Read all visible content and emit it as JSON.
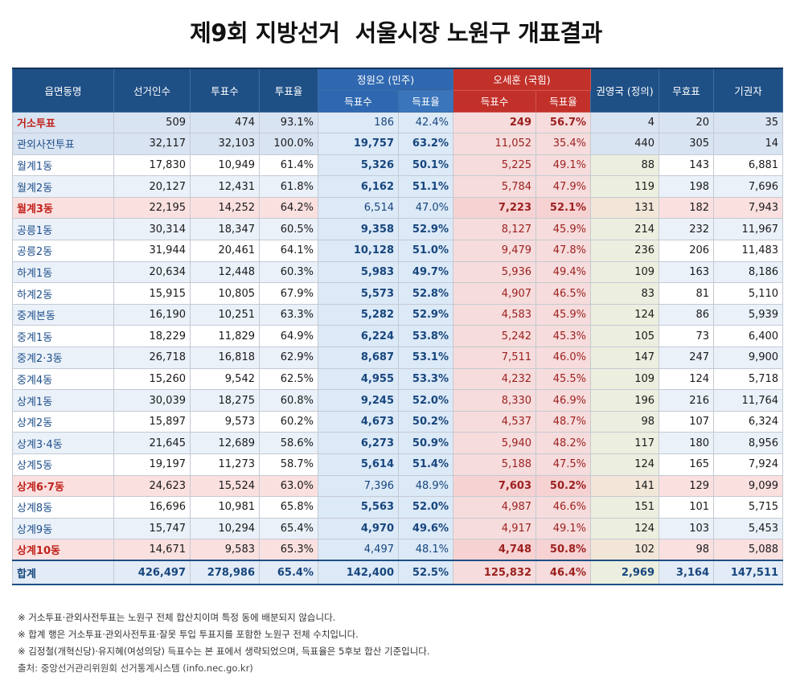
{
  "title": "제9회 지방선거  서울시장 노원구 개표결과",
  "header": {
    "col_area": "읍면동명",
    "col_electors": "선거인수",
    "col_voters": "투표수",
    "col_turnout": "투표율",
    "cand1": "정원오 (민주)",
    "cand2": "오세훈 (국힘)",
    "cand3": "권영국 (정의)",
    "col_invalid": "무효표",
    "col_abstain": "기권자",
    "sub_votes": "득표수",
    "sub_rate": "득표율"
  },
  "rows": [
    {
      "name": "거소투표",
      "electors": "509",
      "voters": "474",
      "turnout": "93.1%",
      "g_votes": "186",
      "g_rate": "42.4%",
      "o_votes": "249",
      "o_rate": "56.7%",
      "k_votes": "4",
      "invalid": "20",
      "abstain": "35",
      "winner": "o",
      "kind": "special"
    },
    {
      "name": "관외사전투표",
      "electors": "32,117",
      "voters": "32,103",
      "turnout": "100.0%",
      "g_votes": "19,757",
      "g_rate": "63.2%",
      "o_votes": "11,052",
      "o_rate": "35.4%",
      "k_votes": "440",
      "invalid": "305",
      "abstain": "14",
      "winner": "g",
      "kind": "special"
    },
    {
      "name": "월계1동",
      "electors": "17,830",
      "voters": "10,949",
      "turnout": "61.4%",
      "g_votes": "5,326",
      "g_rate": "50.1%",
      "o_votes": "5,225",
      "o_rate": "49.1%",
      "k_votes": "88",
      "invalid": "143",
      "abstain": "6,881",
      "winner": "g",
      "kind": "white"
    },
    {
      "name": "월계2동",
      "electors": "20,127",
      "voters": "12,431",
      "turnout": "61.8%",
      "g_votes": "6,162",
      "g_rate": "51.1%",
      "o_votes": "5,784",
      "o_rate": "47.9%",
      "k_votes": "119",
      "invalid": "198",
      "abstain": "7,696",
      "winner": "g",
      "kind": "alt"
    },
    {
      "name": "월계3동",
      "electors": "22,195",
      "voters": "14,252",
      "turnout": "64.2%",
      "g_votes": "6,514",
      "g_rate": "47.0%",
      "o_votes": "7,223",
      "o_rate": "52.1%",
      "k_votes": "131",
      "invalid": "182",
      "abstain": "7,943",
      "winner": "o",
      "kind": "oh"
    },
    {
      "name": "공릉1동",
      "electors": "30,314",
      "voters": "18,347",
      "turnout": "60.5%",
      "g_votes": "9,358",
      "g_rate": "52.9%",
      "o_votes": "8,127",
      "o_rate": "45.9%",
      "k_votes": "214",
      "invalid": "232",
      "abstain": "11,967",
      "winner": "g",
      "kind": "alt"
    },
    {
      "name": "공릉2동",
      "electors": "31,944",
      "voters": "20,461",
      "turnout": "64.1%",
      "g_votes": "10,128",
      "g_rate": "51.0%",
      "o_votes": "9,479",
      "o_rate": "47.8%",
      "k_votes": "236",
      "invalid": "206",
      "abstain": "11,483",
      "winner": "g",
      "kind": "white"
    },
    {
      "name": "하계1동",
      "electors": "20,634",
      "voters": "12,448",
      "turnout": "60.3%",
      "g_votes": "5,983",
      "g_rate": "49.7%",
      "o_votes": "5,936",
      "o_rate": "49.4%",
      "k_votes": "109",
      "invalid": "163",
      "abstain": "8,186",
      "winner": "g",
      "kind": "alt"
    },
    {
      "name": "하계2동",
      "electors": "15,915",
      "voters": "10,805",
      "turnout": "67.9%",
      "g_votes": "5,573",
      "g_rate": "52.8%",
      "o_votes": "4,907",
      "o_rate": "46.5%",
      "k_votes": "83",
      "invalid": "81",
      "abstain": "5,110",
      "winner": "g",
      "kind": "white"
    },
    {
      "name": "중계본동",
      "electors": "16,190",
      "voters": "10,251",
      "turnout": "63.3%",
      "g_votes": "5,282",
      "g_rate": "52.9%",
      "o_votes": "4,583",
      "o_rate": "45.9%",
      "k_votes": "124",
      "invalid": "86",
      "abstain": "5,939",
      "winner": "g",
      "kind": "alt"
    },
    {
      "name": "중계1동",
      "electors": "18,229",
      "voters": "11,829",
      "turnout": "64.9%",
      "g_votes": "6,224",
      "g_rate": "53.8%",
      "o_votes": "5,242",
      "o_rate": "45.3%",
      "k_votes": "105",
      "invalid": "73",
      "abstain": "6,400",
      "winner": "g",
      "kind": "white"
    },
    {
      "name": "중계2·3동",
      "electors": "26,718",
      "voters": "16,818",
      "turnout": "62.9%",
      "g_votes": "8,687",
      "g_rate": "53.1%",
      "o_votes": "7,511",
      "o_rate": "46.0%",
      "k_votes": "147",
      "invalid": "247",
      "abstain": "9,900",
      "winner": "g",
      "kind": "alt"
    },
    {
      "name": "중계4동",
      "electors": "15,260",
      "voters": "9,542",
      "turnout": "62.5%",
      "g_votes": "4,955",
      "g_rate": "53.3%",
      "o_votes": "4,232",
      "o_rate": "45.5%",
      "k_votes": "109",
      "invalid": "124",
      "abstain": "5,718",
      "winner": "g",
      "kind": "white"
    },
    {
      "name": "상계1동",
      "electors": "30,039",
      "voters": "18,275",
      "turnout": "60.8%",
      "g_votes": "9,245",
      "g_rate": "52.0%",
      "o_votes": "8,330",
      "o_rate": "46.9%",
      "k_votes": "196",
      "invalid": "216",
      "abstain": "11,764",
      "winner": "g",
      "kind": "alt"
    },
    {
      "name": "상계2동",
      "electors": "15,897",
      "voters": "9,573",
      "turnout": "60.2%",
      "g_votes": "4,673",
      "g_rate": "50.2%",
      "o_votes": "4,537",
      "o_rate": "48.7%",
      "k_votes": "98",
      "invalid": "107",
      "abstain": "6,324",
      "winner": "g",
      "kind": "white"
    },
    {
      "name": "상계3·4동",
      "electors": "21,645",
      "voters": "12,689",
      "turnout": "58.6%",
      "g_votes": "6,273",
      "g_rate": "50.9%",
      "o_votes": "5,940",
      "o_rate": "48.2%",
      "k_votes": "117",
      "invalid": "180",
      "abstain": "8,956",
      "winner": "g",
      "kind": "alt"
    },
    {
      "name": "상계5동",
      "electors": "19,197",
      "voters": "11,273",
      "turnout": "58.7%",
      "g_votes": "5,614",
      "g_rate": "51.4%",
      "o_votes": "5,188",
      "o_rate": "47.5%",
      "k_votes": "124",
      "invalid": "165",
      "abstain": "7,924",
      "winner": "g",
      "kind": "white"
    },
    {
      "name": "상계6·7동",
      "electors": "24,623",
      "voters": "15,524",
      "turnout": "63.0%",
      "g_votes": "7,396",
      "g_rate": "48.9%",
      "o_votes": "7,603",
      "o_rate": "50.2%",
      "k_votes": "141",
      "invalid": "129",
      "abstain": "9,099",
      "winner": "o",
      "kind": "oh"
    },
    {
      "name": "상계8동",
      "electors": "16,696",
      "voters": "10,981",
      "turnout": "65.8%",
      "g_votes": "5,563",
      "g_rate": "52.0%",
      "o_votes": "4,987",
      "o_rate": "46.6%",
      "k_votes": "151",
      "invalid": "101",
      "abstain": "5,715",
      "winner": "g",
      "kind": "white"
    },
    {
      "name": "상계9동",
      "electors": "15,747",
      "voters": "10,294",
      "turnout": "65.4%",
      "g_votes": "4,970",
      "g_rate": "49.6%",
      "o_votes": "4,917",
      "o_rate": "49.1%",
      "k_votes": "124",
      "invalid": "103",
      "abstain": "5,453",
      "winner": "g",
      "kind": "alt"
    },
    {
      "name": "상계10동",
      "electors": "14,671",
      "voters": "9,583",
      "turnout": "65.3%",
      "g_votes": "4,497",
      "g_rate": "48.1%",
      "o_votes": "4,748",
      "o_rate": "50.8%",
      "k_votes": "102",
      "invalid": "98",
      "abstain": "5,088",
      "winner": "o",
      "kind": "oh"
    }
  ],
  "total": {
    "name": "합계",
    "electors": "426,497",
    "voters": "278,986",
    "turnout": "65.4%",
    "g_votes": "142,400",
    "g_rate": "52.5%",
    "o_votes": "125,832",
    "o_rate": "46.4%",
    "k_votes": "2,969",
    "invalid": "3,164",
    "abstain": "147,511"
  },
  "notes": [
    "※ 거소투표·관외사전투표는 노원구 전체 합산치이며 특정 동에 배분되지 않습니다.",
    "※ 합계 행은 거소투표·관외사전투표·잘못 투입 투표지를 포함한 노원구 전체 수치입니다.",
    "※ 김정철(개혁신당)·유지혜(여성의당) 득표수는 본 표에서 생략되었으며, 득표율은 5후보 합산 기준입니다."
  ],
  "source": "출처: 중앙선거관리위원회 선거통계시스템 (info.nec.go.kr)",
  "colors": {
    "header_navy": "#1e4f85",
    "header_blue": "#2f68b0",
    "header_red": "#c2302a",
    "cell_blue": "#dce9f7",
    "cell_red": "#f6dcdc",
    "cell_olive": "#ecefdf"
  }
}
